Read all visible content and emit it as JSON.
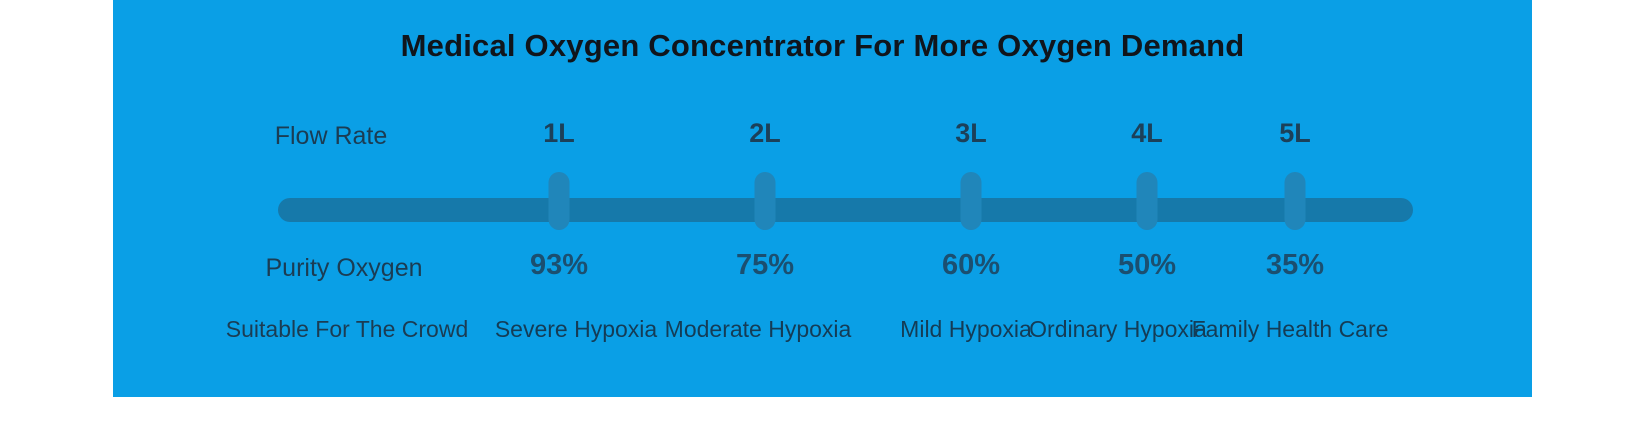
{
  "banner": {
    "title": "Medical Oxygen Concentrator For More Oxygen Demand",
    "colors": {
      "background": "#0a9fe6",
      "track": "#1679aa",
      "handle": "#2086ba",
      "title_text": "#10151c",
      "label_text": "#1b3c53"
    },
    "rows": {
      "flow_rate_label": "Flow Rate",
      "purity_label": "Purity Oxygen",
      "crowd_label": "Suitable For The Crowd"
    },
    "columns": [
      {
        "flow": "1L",
        "purity": "93%",
        "crowd": "Severe Hypoxia"
      },
      {
        "flow": "2L",
        "purity": "75%",
        "crowd": "Moderate Hypoxia"
      },
      {
        "flow": "3L",
        "purity": "60%",
        "crowd": "Mild Hypoxia"
      },
      {
        "flow": "4L",
        "purity": "50%",
        "crowd": "Ordinary Hypoxia"
      },
      {
        "flow": "5L",
        "purity": "35%",
        "crowd": "Family Health Care"
      }
    ]
  }
}
